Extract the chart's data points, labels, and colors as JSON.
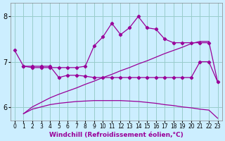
{
  "bg_color": "#cceeff",
  "line_color": "#990099",
  "grid_color": "#99cccc",
  "xlabel": "Windchill (Refroidissement éolien,°C)",
  "ylim": [
    5.7,
    8.3
  ],
  "xlim": [
    -0.5,
    23.5
  ],
  "yticks": [
    6,
    7,
    8
  ],
  "xticks": [
    0,
    1,
    2,
    3,
    4,
    5,
    6,
    7,
    8,
    9,
    10,
    11,
    12,
    13,
    14,
    15,
    16,
    17,
    18,
    19,
    20,
    21,
    22,
    23
  ],
  "curve1_x": [
    0,
    1,
    2,
    3,
    4,
    5,
    6,
    7,
    8,
    9,
    10,
    11,
    12,
    13,
    14,
    15,
    16,
    17,
    18,
    19,
    20,
    21,
    22
  ],
  "curve1_y": [
    7.25,
    6.9,
    6.87,
    6.87,
    6.87,
    6.87,
    6.87,
    6.87,
    6.9,
    7.35,
    7.55,
    7.85,
    7.6,
    7.75,
    8.0,
    7.75,
    7.72,
    7.5,
    7.42,
    7.42,
    7.42,
    7.42,
    7.42
  ],
  "curve2_x": [
    1,
    2,
    3,
    4,
    5,
    6,
    7,
    8,
    9,
    10,
    11,
    12,
    13,
    14,
    15,
    16,
    17,
    18,
    19,
    20,
    21,
    22,
    23
  ],
  "curve2_y": [
    6.9,
    6.9,
    6.9,
    6.9,
    6.65,
    6.7,
    6.7,
    6.68,
    6.65,
    6.65,
    6.65,
    6.65,
    6.65,
    6.65,
    6.65,
    6.65,
    6.65,
    6.65,
    6.65,
    6.65,
    7.0,
    7.0,
    6.55
  ],
  "curve3_x": [
    1,
    2,
    3,
    4,
    5,
    6,
    7,
    8,
    9,
    10,
    11,
    12,
    13,
    14,
    15,
    16,
    17,
    18,
    19,
    20,
    21,
    22,
    23
  ],
  "curve3_y": [
    5.85,
    6.0,
    6.1,
    6.2,
    6.28,
    6.35,
    6.42,
    6.5,
    6.57,
    6.65,
    6.72,
    6.8,
    6.87,
    6.95,
    7.02,
    7.1,
    7.18,
    7.25,
    7.32,
    7.4,
    7.45,
    7.45,
    6.55
  ],
  "curve4_x": [
    1,
    2,
    3,
    4,
    5,
    6,
    7,
    8,
    9,
    10,
    11,
    12,
    13,
    14,
    15,
    16,
    17,
    18,
    19,
    20,
    21,
    22,
    23
  ],
  "curve4_y": [
    5.85,
    5.95,
    6.0,
    6.05,
    6.08,
    6.1,
    6.12,
    6.13,
    6.14,
    6.14,
    6.14,
    6.14,
    6.13,
    6.12,
    6.1,
    6.08,
    6.05,
    6.03,
    6.0,
    5.98,
    5.95,
    5.93,
    5.75
  ]
}
